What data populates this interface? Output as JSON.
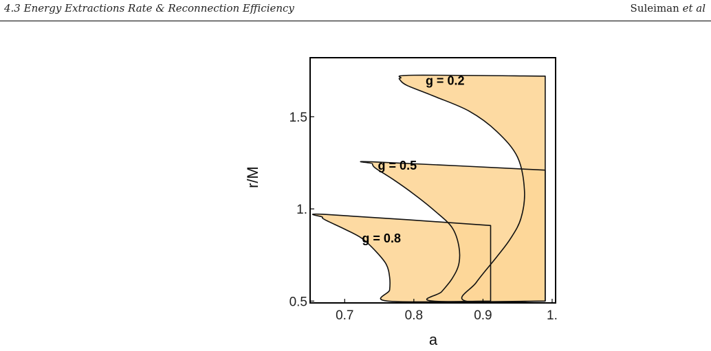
{
  "header": {
    "section": "4.3   Energy Extractions Rate & Reconnection Efficiency",
    "author": "Suleiman",
    "author_suffix": "et al"
  },
  "chart_data": {
    "type": "area",
    "title": "",
    "xlabel": "a",
    "ylabel": "r/M",
    "xlim": [
      0.65,
      1.005
    ],
    "ylim": [
      0.49,
      1.82
    ],
    "xticks": [
      {
        "v": 0.7,
        "label": "0.7"
      },
      {
        "v": 0.8,
        "label": "0.8"
      },
      {
        "v": 0.9,
        "label": "0.9"
      },
      {
        "v": 1.0,
        "label": "1."
      }
    ],
    "yticks": [
      {
        "v": 0.5,
        "label": "0.5"
      },
      {
        "v": 1.0,
        "label": "1."
      },
      {
        "v": 1.5,
        "label": "1.5"
      }
    ],
    "grid": false,
    "fill_color": "#FDD698",
    "overlap_color": "#FCBF5C",
    "series": [
      {
        "name": "g = 0.2",
        "label_at": [
          0.817,
          1.695
        ],
        "boundary": [
          [
            0.99,
            1.72
          ],
          [
            0.8,
            1.725
          ],
          [
            0.781,
            1.71
          ],
          [
            0.78,
            1.7
          ],
          [
            0.79,
            1.67
          ],
          [
            0.83,
            1.61
          ],
          [
            0.88,
            1.53
          ],
          [
            0.92,
            1.42
          ],
          [
            0.95,
            1.28
          ],
          [
            0.96,
            1.1
          ],
          [
            0.955,
            0.95
          ],
          [
            0.94,
            0.84
          ],
          [
            0.92,
            0.74
          ],
          [
            0.89,
            0.6
          ],
          [
            0.875,
            0.5
          ],
          [
            0.99,
            0.5
          ]
        ]
      },
      {
        "name": "g = 0.5",
        "label_at": [
          0.748,
          1.235
        ],
        "boundary": [
          [
            0.99,
            1.21
          ],
          [
            0.742,
            1.255
          ],
          [
            0.74,
            1.245
          ],
          [
            0.745,
            1.22
          ],
          [
            0.77,
            1.16
          ],
          [
            0.8,
            1.08
          ],
          [
            0.83,
            0.99
          ],
          [
            0.855,
            0.9
          ],
          [
            0.865,
            0.8
          ],
          [
            0.865,
            0.7
          ],
          [
            0.855,
            0.62
          ],
          [
            0.84,
            0.55
          ],
          [
            0.828,
            0.5
          ],
          [
            0.99,
            0.5
          ]
        ]
      },
      {
        "name": "g = 0.8",
        "label_at": [
          0.725,
          0.84
        ],
        "boundary": [
          [
            0.911,
            0.91
          ],
          [
            0.673,
            0.97
          ],
          [
            0.668,
            0.955
          ],
          [
            0.672,
            0.94
          ],
          [
            0.7,
            0.89
          ],
          [
            0.725,
            0.84
          ],
          [
            0.745,
            0.77
          ],
          [
            0.76,
            0.7
          ],
          [
            0.765,
            0.63
          ],
          [
            0.765,
            0.56
          ],
          [
            0.762,
            0.5
          ],
          [
            0.911,
            0.5
          ]
        ]
      }
    ]
  }
}
